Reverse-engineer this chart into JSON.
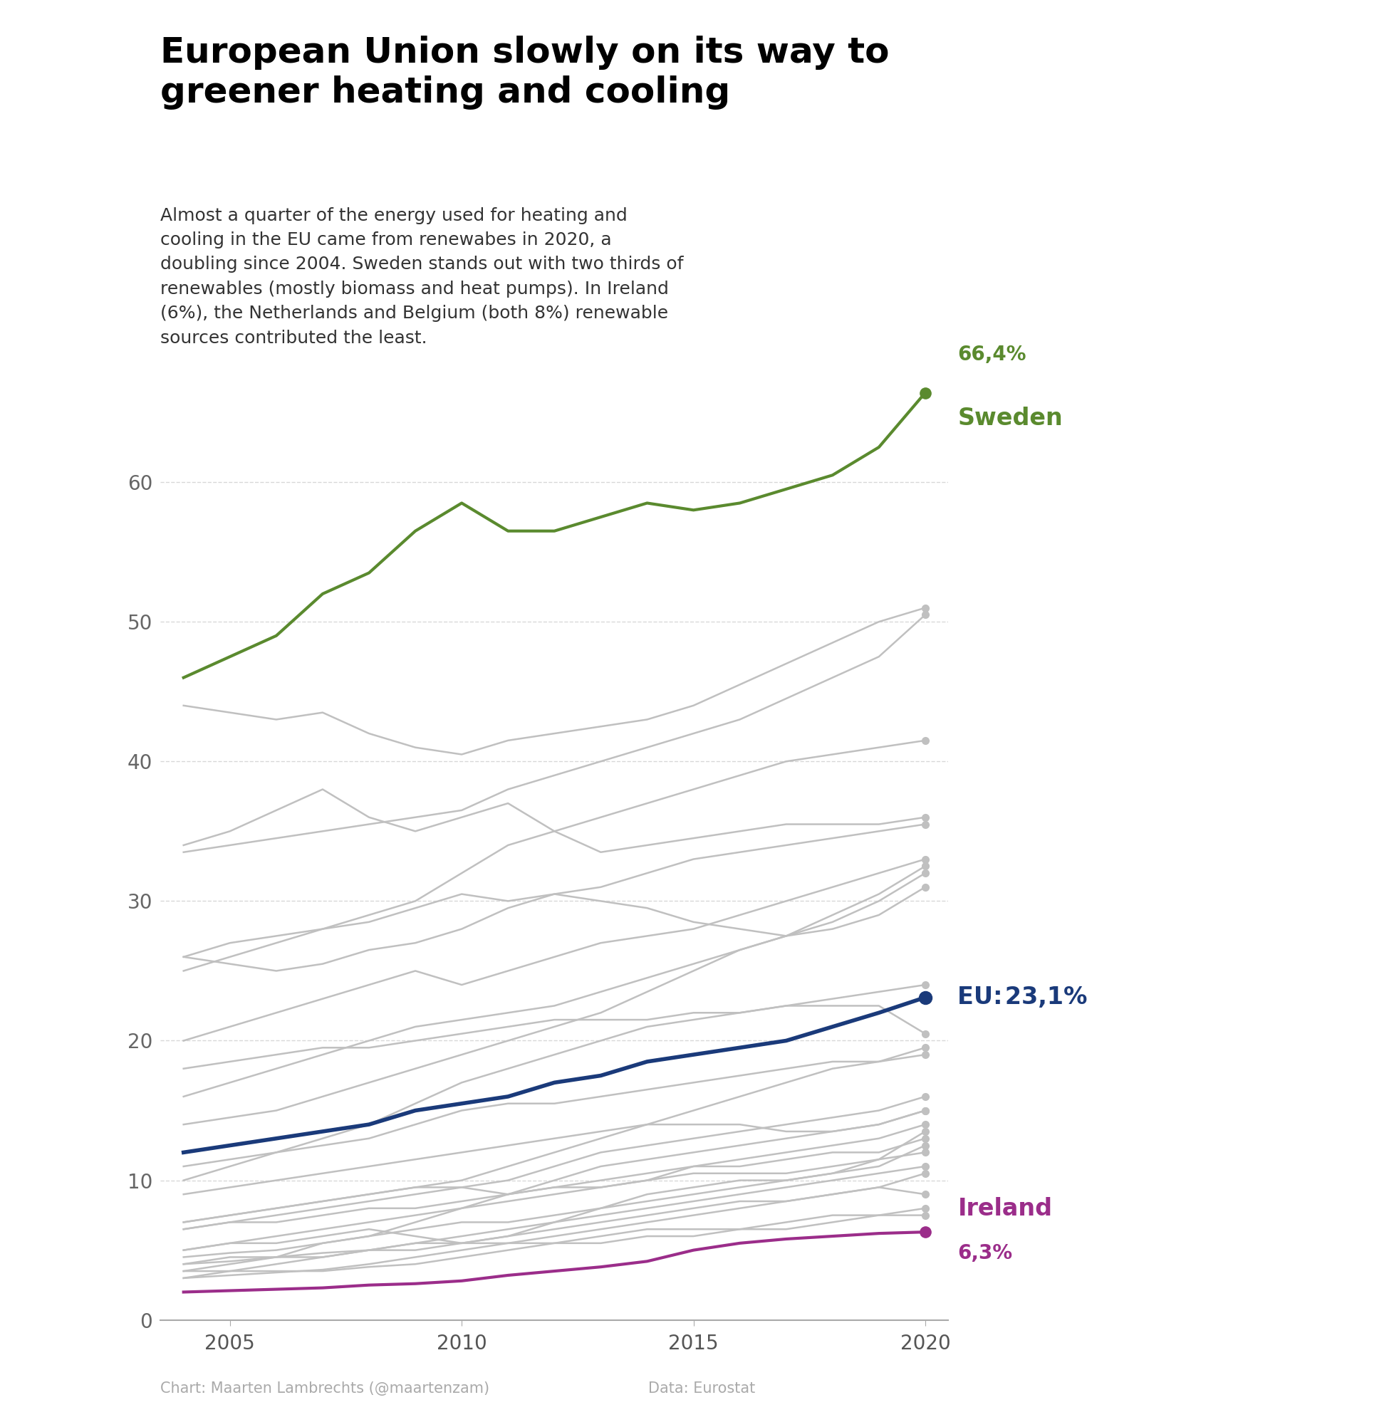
{
  "title": "European Union slowly on its way to\ngreener heating and cooling",
  "subtitle": "Almost a quarter of the energy used for heating and\ncooling in the EU came from renewabes in 2020, a\ndoubling since 2004. Sweden stands out with two thirds of\nrenewables (mostly biomass and heat pumps). In Ireland\n(6%), the Netherlands and Belgium (both 8%) renewable\nsources contributed the least.",
  "title_color": "#000000",
  "subtitle_color": "#333333",
  "credit_left": "Chart: Maarten Lambrechts (@maartenzam)",
  "credit_right": "Data: Eurostat",
  "years": [
    2004,
    2005,
    2006,
    2007,
    2008,
    2009,
    2010,
    2011,
    2012,
    2013,
    2014,
    2015,
    2016,
    2017,
    2018,
    2019,
    2020
  ],
  "sweden_color": "#5a8a2e",
  "ireland_color": "#9b2d8a",
  "eu_color": "#1a3a7a",
  "grey_color": "#c0c0c0",
  "bg_color": "#ffffff",
  "sweden_data": [
    46.0,
    47.5,
    49.0,
    52.0,
    53.5,
    56.5,
    58.5,
    56.5,
    56.5,
    57.5,
    58.5,
    58.0,
    58.5,
    59.5,
    60.5,
    62.5,
    66.4
  ],
  "ireland_data": [
    2.0,
    2.1,
    2.2,
    2.3,
    2.5,
    2.6,
    2.8,
    3.2,
    3.5,
    3.8,
    4.2,
    5.0,
    5.5,
    5.8,
    6.0,
    6.2,
    6.3
  ],
  "eu_data": [
    12.0,
    12.5,
    13.0,
    13.5,
    14.0,
    15.0,
    15.5,
    16.0,
    17.0,
    17.5,
    18.5,
    19.0,
    19.5,
    20.0,
    21.0,
    22.0,
    23.1
  ],
  "grey_series": [
    [
      44.0,
      43.5,
      43.0,
      43.5,
      42.0,
      41.0,
      40.5,
      41.5,
      42.0,
      42.5,
      43.0,
      44.0,
      45.5,
      47.0,
      48.5,
      50.0,
      51.0
    ],
    [
      33.5,
      34.0,
      34.5,
      35.0,
      35.5,
      36.0,
      36.5,
      38.0,
      39.0,
      40.0,
      41.0,
      42.0,
      43.0,
      44.5,
      46.0,
      47.5,
      50.5
    ],
    [
      25.0,
      26.0,
      27.0,
      28.0,
      29.0,
      30.0,
      32.0,
      34.0,
      35.0,
      36.0,
      37.0,
      38.0,
      39.0,
      40.0,
      40.5,
      41.0,
      41.5
    ],
    [
      34.0,
      35.0,
      36.5,
      38.0,
      36.0,
      35.0,
      36.0,
      37.0,
      35.0,
      33.5,
      34.0,
      34.5,
      35.0,
      35.5,
      35.5,
      35.5,
      36.0
    ],
    [
      26.0,
      27.0,
      27.5,
      28.0,
      28.5,
      29.5,
      30.5,
      30.0,
      30.5,
      31.0,
      32.0,
      33.0,
      33.5,
      34.0,
      34.5,
      35.0,
      35.5
    ],
    [
      20.0,
      21.0,
      22.0,
      23.0,
      24.0,
      25.0,
      24.0,
      25.0,
      26.0,
      27.0,
      27.5,
      28.0,
      29.0,
      30.0,
      31.0,
      32.0,
      33.0
    ],
    [
      14.0,
      14.5,
      15.0,
      16.0,
      17.0,
      18.0,
      19.0,
      20.0,
      21.0,
      22.0,
      23.5,
      25.0,
      26.5,
      27.5,
      29.0,
      30.5,
      32.5
    ],
    [
      16.0,
      17.0,
      18.0,
      19.0,
      20.0,
      21.0,
      21.5,
      22.0,
      22.5,
      23.5,
      24.5,
      25.5,
      26.5,
      27.5,
      28.5,
      30.0,
      32.0
    ],
    [
      26.0,
      25.5,
      25.0,
      25.5,
      26.5,
      27.0,
      28.0,
      29.5,
      30.5,
      30.0,
      29.5,
      28.5,
      28.0,
      27.5,
      28.0,
      29.0,
      31.0
    ],
    [
      10.0,
      11.0,
      12.0,
      13.0,
      14.0,
      15.5,
      17.0,
      18.0,
      19.0,
      20.0,
      21.0,
      21.5,
      22.0,
      22.5,
      23.0,
      23.5,
      24.0
    ],
    [
      18.0,
      18.5,
      19.0,
      19.5,
      19.5,
      20.0,
      20.5,
      21.0,
      21.5,
      21.5,
      21.5,
      22.0,
      22.0,
      22.5,
      22.5,
      22.5,
      20.5
    ],
    [
      7.0,
      7.5,
      8.0,
      8.5,
      9.0,
      9.5,
      10.0,
      11.0,
      12.0,
      13.0,
      14.0,
      15.0,
      16.0,
      17.0,
      18.0,
      18.5,
      19.5
    ],
    [
      11.0,
      11.5,
      12.0,
      12.5,
      13.0,
      14.0,
      15.0,
      15.5,
      15.5,
      16.0,
      16.5,
      17.0,
      17.5,
      18.0,
      18.5,
      18.5,
      19.0
    ],
    [
      6.5,
      7.0,
      7.5,
      8.0,
      8.5,
      9.0,
      9.5,
      10.0,
      11.0,
      12.0,
      12.5,
      13.0,
      13.5,
      14.0,
      14.5,
      15.0,
      16.0
    ],
    [
      4.5,
      4.8,
      5.0,
      5.5,
      6.0,
      7.0,
      8.0,
      9.0,
      10.0,
      11.0,
      11.5,
      12.0,
      12.5,
      13.0,
      13.5,
      14.0,
      15.0
    ],
    [
      9.0,
      9.5,
      10.0,
      10.5,
      11.0,
      11.5,
      12.0,
      12.5,
      13.0,
      13.5,
      14.0,
      14.0,
      14.0,
      13.5,
      13.5,
      14.0,
      15.0
    ],
    [
      5.0,
      5.5,
      6.0,
      6.5,
      7.0,
      7.5,
      8.0,
      8.5,
      9.0,
      9.5,
      10.0,
      11.0,
      11.5,
      12.0,
      12.5,
      13.0,
      14.0
    ],
    [
      5.0,
      5.5,
      5.5,
      6.0,
      6.5,
      6.0,
      5.5,
      6.0,
      7.0,
      8.0,
      9.0,
      9.5,
      10.0,
      10.0,
      10.5,
      11.5,
      13.5
    ],
    [
      7.0,
      7.5,
      8.0,
      8.5,
      9.0,
      9.5,
      9.5,
      9.0,
      9.5,
      10.0,
      10.5,
      11.0,
      11.0,
      11.5,
      12.0,
      12.0,
      13.0
    ],
    [
      3.5,
      4.0,
      4.5,
      5.5,
      6.0,
      6.5,
      7.0,
      7.0,
      7.5,
      8.0,
      8.5,
      9.0,
      9.5,
      10.0,
      10.5,
      11.0,
      12.5
    ],
    [
      6.5,
      7.0,
      7.0,
      7.5,
      8.0,
      8.0,
      8.5,
      9.0,
      9.5,
      9.5,
      10.0,
      10.5,
      10.5,
      10.5,
      11.0,
      11.5,
      12.0
    ],
    [
      4.0,
      4.2,
      4.5,
      4.8,
      5.0,
      5.5,
      6.0,
      6.5,
      7.0,
      7.5,
      8.0,
      8.5,
      9.0,
      9.5,
      10.0,
      10.5,
      11.0
    ],
    [
      3.0,
      3.5,
      4.0,
      4.5,
      5.0,
      5.0,
      5.5,
      6.0,
      6.5,
      7.0,
      7.5,
      8.0,
      8.5,
      8.5,
      9.0,
      9.5,
      10.5
    ],
    [
      3.0,
      3.2,
      3.4,
      3.6,
      4.0,
      4.5,
      5.0,
      5.5,
      6.0,
      6.5,
      7.0,
      7.5,
      8.0,
      8.5,
      9.0,
      9.5,
      9.0
    ],
    [
      3.5,
      3.5,
      3.5,
      3.5,
      3.8,
      4.0,
      4.5,
      5.0,
      5.5,
      6.0,
      6.5,
      6.5,
      6.5,
      7.0,
      7.5,
      7.5,
      8.0
    ],
    [
      4.0,
      4.5,
      4.5,
      4.5,
      5.0,
      5.5,
      5.5,
      5.5,
      5.5,
      5.5,
      6.0,
      6.0,
      6.5,
      6.5,
      7.0,
      7.5,
      7.5
    ]
  ],
  "ylim": [
    0,
    70
  ],
  "yticks": [
    0,
    10,
    20,
    30,
    40,
    50,
    60
  ],
  "xlim_data": [
    2004,
    2020
  ],
  "xticks": [
    2005,
    2010,
    2015,
    2020
  ],
  "title_fontsize": 36,
  "subtitle_fontsize": 18,
  "tick_fontsize": 20,
  "credit_fontsize": 15,
  "label_fontsize_large": 24,
  "label_fontsize_small": 20
}
